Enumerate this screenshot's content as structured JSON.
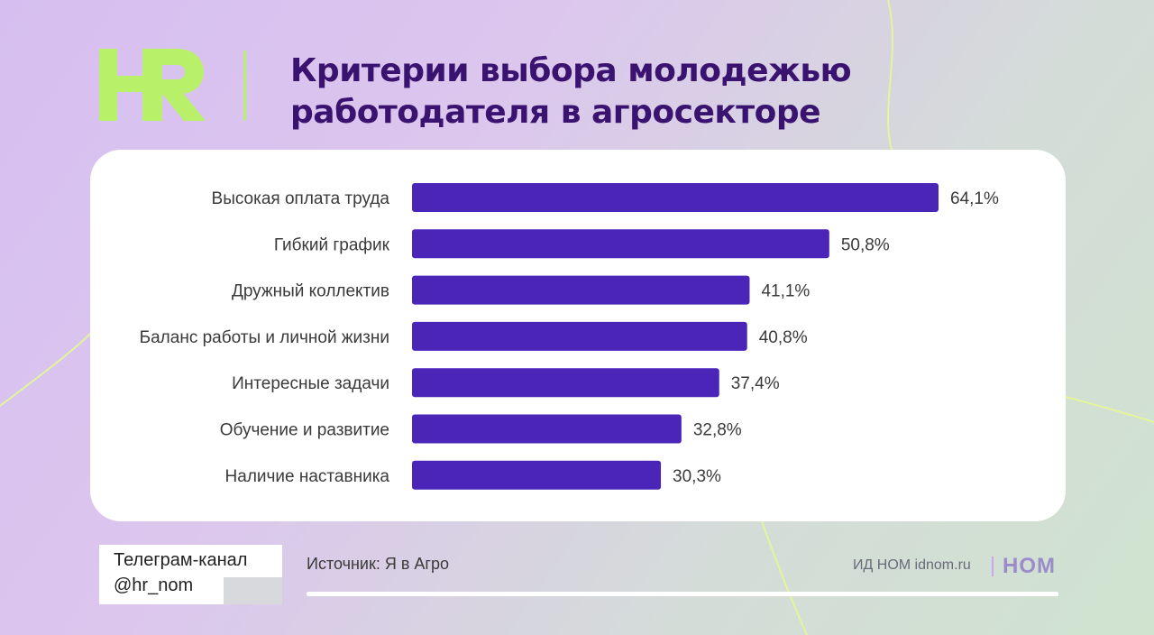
{
  "header": {
    "logo_text": "HR",
    "title_line1": "Критерии выбора молодежью",
    "title_line2": "работодателя в агросекторе"
  },
  "chart_data": {
    "type": "bar",
    "orientation": "horizontal",
    "title": "Критерии выбора молодежью работодателя в агросекторе",
    "categories": [
      "Высокая оплата труда",
      "Гибкий график",
      "Дружный коллектив",
      "Баланс работы и личной жизни",
      "Интересные задачи",
      "Обучение и развитие",
      "Наличие наставника"
    ],
    "values": [
      64.1,
      50.8,
      41.1,
      40.8,
      37.4,
      32.8,
      30.3
    ],
    "value_labels": [
      "64,1%",
      "50,8%",
      "41,1%",
      "40,8%",
      "37,4%",
      "32,8%",
      "30,3%"
    ],
    "xlim": [
      0,
      64.1
    ],
    "bar_color": "#4a25b8",
    "grid": false,
    "legend": "none"
  },
  "footer": {
    "telegram_line1": "Телеграм-канал",
    "telegram_line2": "@hr_nom",
    "source": "Источник: Я в Агро",
    "publisher": "ИД НОМ idnom.ru",
    "publisher_logo": "НОМ"
  },
  "colors": {
    "accent_green": "#b8f06a",
    "title_purple": "#3a1270",
    "bar_purple": "#4a25b8"
  }
}
